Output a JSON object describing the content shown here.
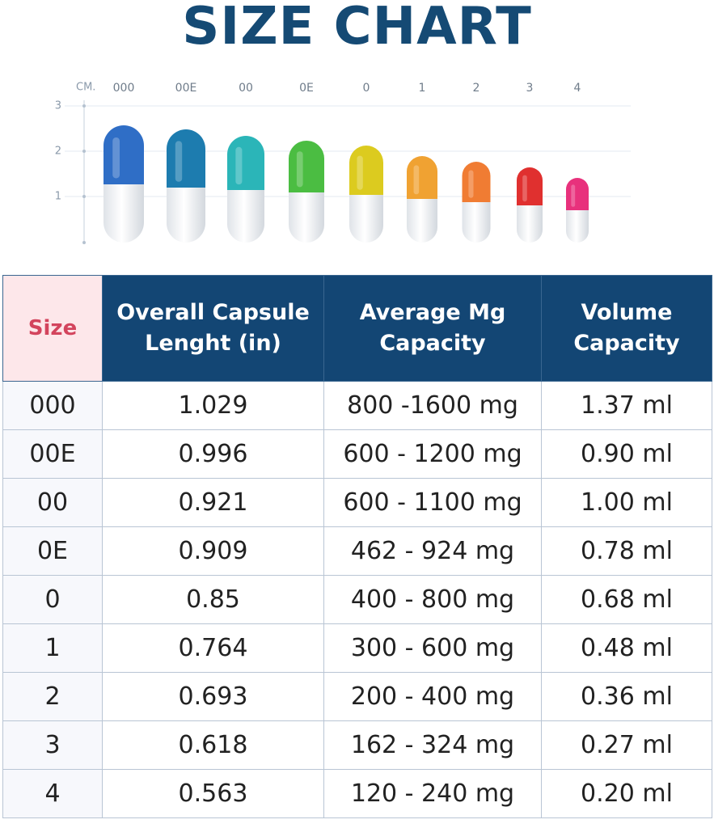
{
  "header": {
    "title": "SIZE CHART"
  },
  "illustration": {
    "axis_unit": "CM.",
    "axis_labels": [
      "3",
      "2",
      "1"
    ],
    "sizes": [
      "000",
      "00E",
      "00",
      "0E",
      "0",
      "1",
      "2",
      "3",
      "4"
    ]
  },
  "table": {
    "columns": [
      "Size",
      "Overall Capsule Lenght (in)",
      "Average Mg Capacity",
      "Volume Capacity"
    ],
    "rows": [
      [
        "000",
        "1.029",
        "800 -1600 mg",
        "1.37 ml"
      ],
      [
        "00E",
        "0.996",
        "600 - 1200 mg",
        "0.90 ml"
      ],
      [
        "00",
        "0.921",
        "600 - 1100 mg",
        "1.00 ml"
      ],
      [
        "0E",
        "0.909",
        "462 - 924 mg",
        "0.78 ml"
      ],
      [
        "0",
        "0.85",
        "400 - 800 mg",
        "0.68 ml"
      ],
      [
        "1",
        "0.764",
        "300 - 600 mg",
        "0.48 ml"
      ],
      [
        "2",
        "0.693",
        "200 - 400 mg",
        "0.36 ml"
      ],
      [
        "3",
        "0.618",
        "162 - 324 mg",
        "0.27 ml"
      ],
      [
        "4",
        "0.563",
        "120 - 240 mg",
        "0.20 ml"
      ]
    ]
  }
}
